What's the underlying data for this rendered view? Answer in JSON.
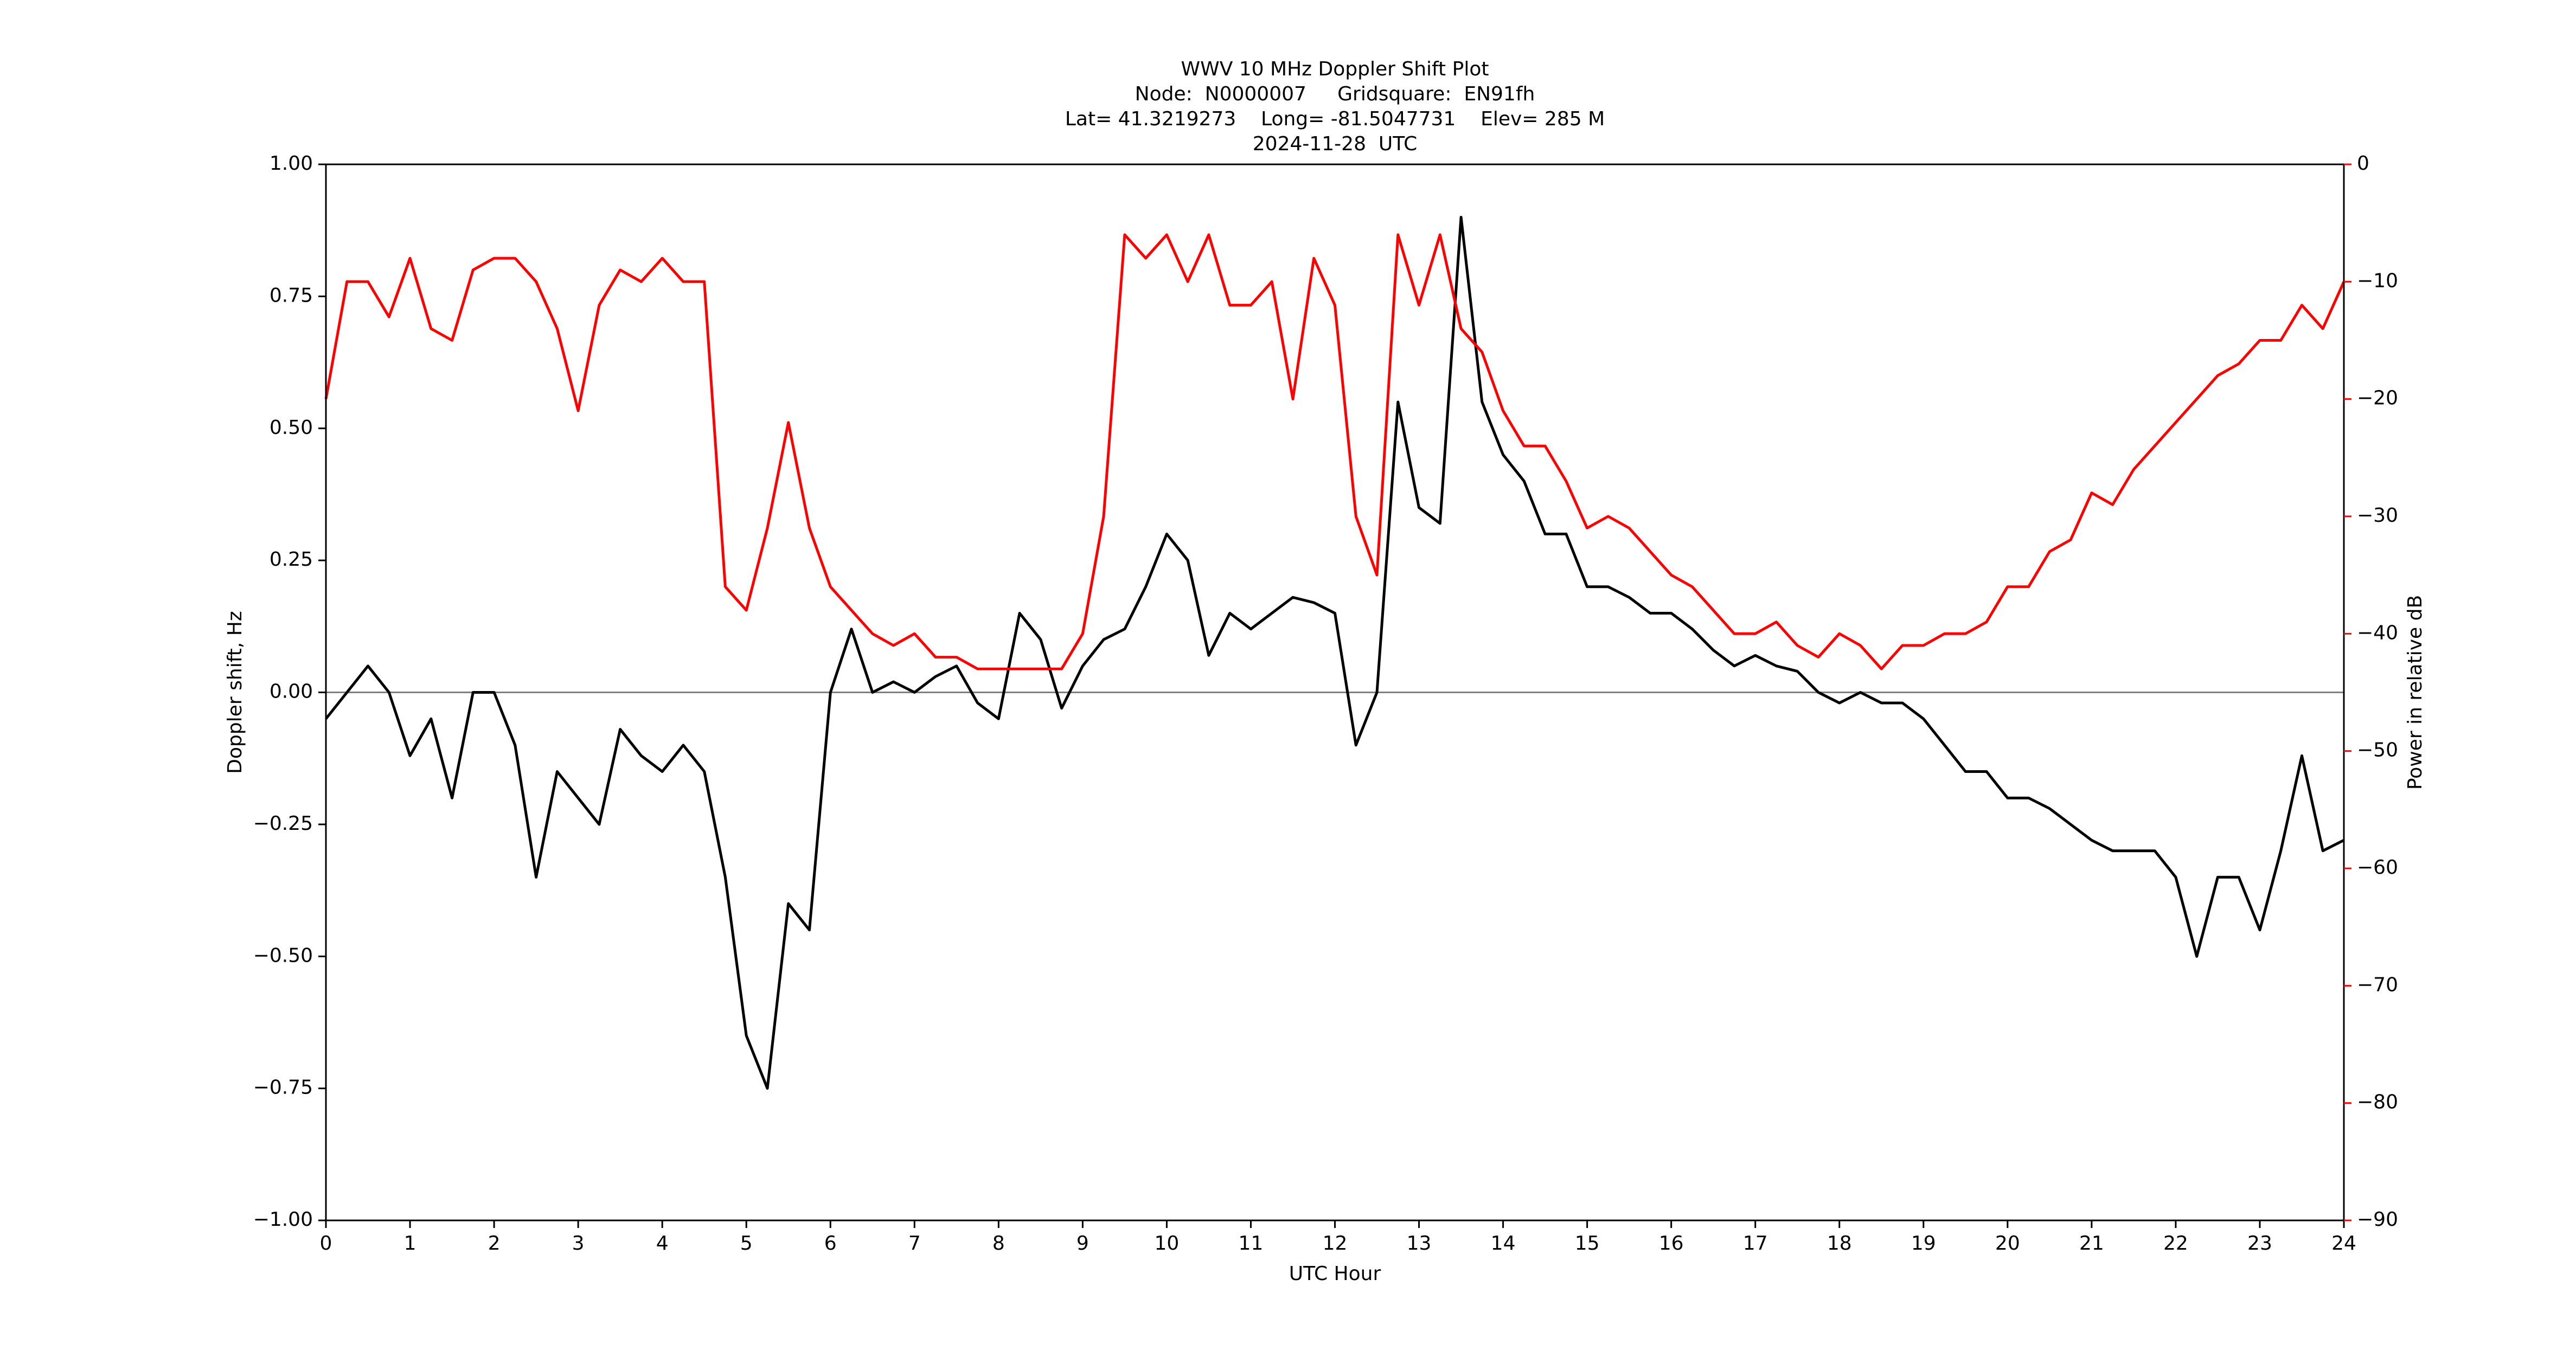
{
  "chart_data": {
    "type": "line",
    "title": [
      "WWV 10 MHz Doppler Shift Plot",
      "Node:  N0000007     Gridsquare:  EN91fh",
      "Lat= 41.3219273    Long= -81.5047731    Elev= 285 M",
      "2024-11-28  UTC"
    ],
    "xlabel": "UTC Hour",
    "ylabel": "Doppler shift, Hz",
    "y2label": "Power in relative dB",
    "y2color": "#ff0000",
    "xlim": [
      0,
      24
    ],
    "xticks": [
      0,
      1,
      2,
      3,
      4,
      5,
      6,
      7,
      8,
      9,
      10,
      11,
      12,
      13,
      14,
      15,
      16,
      17,
      18,
      19,
      20,
      21,
      22,
      23,
      24
    ],
    "ylim": [
      -1,
      1
    ],
    "yticks": [
      {
        "value": -1,
        "label": "−1.00"
      },
      {
        "value": -0.75,
        "label": "−0.75"
      },
      {
        "value": -0.5,
        "label": "−0.50"
      },
      {
        "value": -0.25,
        "label": "−0.25"
      },
      {
        "value": 0,
        "label": "0.00"
      },
      {
        "value": 0.25,
        "label": "0.25"
      },
      {
        "value": 0.5,
        "label": "0.50"
      },
      {
        "value": 0.75,
        "label": "0.75"
      },
      {
        "value": 1,
        "label": "1.00"
      }
    ],
    "y2lim": [
      -90,
      0
    ],
    "y2ticks": [
      {
        "value": -90,
        "label": "−90"
      },
      {
        "value": -80,
        "label": "−80"
      },
      {
        "value": -70,
        "label": "−70"
      },
      {
        "value": -60,
        "label": "−60"
      },
      {
        "value": -50,
        "label": "−50"
      },
      {
        "value": -40,
        "label": "−40"
      },
      {
        "value": -30,
        "label": "−30"
      },
      {
        "value": -20,
        "label": "−20"
      },
      {
        "value": -10,
        "label": "−10"
      },
      0
    ],
    "hline": 0,
    "hline_color": "#808080",
    "x": [
      0,
      0.25,
      0.5,
      0.75,
      1,
      1.25,
      1.5,
      1.75,
      2,
      2.25,
      2.5,
      2.75,
      3,
      3.25,
      3.5,
      3.75,
      4,
      4.25,
      4.5,
      4.75,
      5,
      5.25,
      5.5,
      5.75,
      6,
      6.25,
      6.5,
      6.75,
      7,
      7.25,
      7.5,
      7.75,
      8,
      8.25,
      8.5,
      8.75,
      9,
      9.25,
      9.5,
      9.75,
      10,
      10.25,
      10.5,
      10.75,
      11,
      11.25,
      11.5,
      11.75,
      12,
      12.25,
      12.5,
      12.75,
      13,
      13.25,
      13.5,
      13.75,
      14,
      14.25,
      14.5,
      14.75,
      15,
      15.25,
      15.5,
      15.75,
      16,
      16.25,
      16.5,
      16.75,
      17,
      17.25,
      17.5,
      17.75,
      18,
      18.25,
      18.5,
      18.75,
      19,
      19.25,
      19.5,
      19.75,
      20,
      20.25,
      20.5,
      20.75,
      21,
      21.25,
      21.5,
      21.75,
      22,
      22.25,
      22.5,
      22.75,
      23,
      23.25,
      23.5,
      23.75,
      24
    ],
    "series": [
      {
        "color": "#000000",
        "axis": "y",
        "values": [
          -0.05,
          0.0,
          0.05,
          0.0,
          -0.12,
          -0.05,
          -0.2,
          0.0,
          0.0,
          -0.1,
          -0.35,
          -0.15,
          -0.2,
          -0.25,
          -0.07,
          -0.12,
          -0.15,
          -0.1,
          -0.15,
          -0.35,
          -0.65,
          -0.75,
          -0.4,
          -0.45,
          0.0,
          0.12,
          0.0,
          0.02,
          0.0,
          0.03,
          0.05,
          -0.02,
          -0.05,
          0.15,
          0.1,
          -0.03,
          0.05,
          0.1,
          0.12,
          0.2,
          0.3,
          0.25,
          0.07,
          0.15,
          0.12,
          0.15,
          0.18,
          0.17,
          0.15,
          -0.1,
          0.0,
          0.55,
          0.35,
          0.32,
          0.9,
          0.55,
          0.45,
          0.4,
          0.3,
          0.3,
          0.2,
          0.2,
          0.18,
          0.15,
          0.15,
          0.12,
          0.08,
          0.05,
          0.07,
          0.05,
          0.04,
          0.0,
          -0.02,
          0.0,
          -0.02,
          -0.02,
          -0.05,
          -0.1,
          -0.15,
          -0.15,
          -0.2,
          -0.2,
          -0.22,
          -0.25,
          -0.28,
          -0.3,
          -0.3,
          -0.3,
          -0.35,
          -0.5,
          -0.35,
          -0.35,
          -0.45,
          -0.3,
          -0.12,
          -0.3,
          -0.28
        ]
      },
      {
        "color": "#ff0000",
        "axis": "y2",
        "values": [
          -20,
          -10,
          -10,
          -13,
          -8,
          -14,
          -15,
          -9,
          -8,
          -8,
          -10,
          -14,
          -21,
          -12,
          -9,
          -10,
          -8,
          -10,
          -10,
          -36,
          -38,
          -31,
          -22,
          -31,
          -36,
          -38,
          -40,
          -41,
          -40,
          -42,
          -42,
          -43,
          -43,
          -43,
          -43,
          -43,
          -40,
          -30,
          -6,
          -8,
          -6,
          -10,
          -6,
          -12,
          -12,
          -10,
          -20,
          -8,
          -12,
          -30,
          -35,
          -6,
          -12,
          -6,
          -14,
          -16,
          -21,
          -24,
          -24,
          -27,
          -31,
          -30,
          -31,
          -33,
          -35,
          -36,
          -38,
          -40,
          -40,
          -39,
          -41,
          -42,
          -40,
          -41,
          -43,
          -41,
          -41,
          -40,
          -40,
          -39,
          -36,
          -36,
          -33,
          -32,
          -28,
          -29,
          -26,
          -24,
          -22,
          -20,
          -18,
          -17,
          -15,
          -15,
          -12,
          -14,
          -10
        ]
      }
    ]
  }
}
